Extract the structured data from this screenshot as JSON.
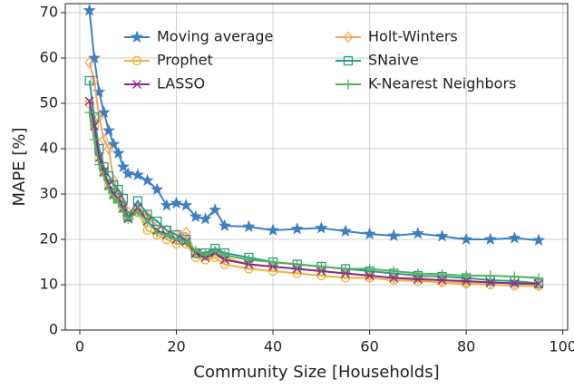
{
  "chart_data": {
    "type": "line",
    "xlabel": "Community Size [Households]",
    "ylabel": "MAPE [%]",
    "x": [
      2,
      3,
      4,
      5,
      6,
      7,
      8,
      9,
      10,
      12,
      14,
      16,
      18,
      20,
      22,
      24,
      26,
      28,
      30,
      35,
      40,
      45,
      50,
      55,
      60,
      65,
      70,
      75,
      80,
      85,
      90,
      95
    ],
    "series": [
      {
        "name": "Moving average",
        "color": "#3f7fc1",
        "marker": "star",
        "values": [
          70.5,
          60,
          52.5,
          48,
          44,
          41,
          39,
          36,
          34.5,
          34.2,
          33,
          31,
          27.5,
          28,
          27.5,
          25,
          24.5,
          26.5,
          23,
          22.8,
          22,
          22.3,
          22.5,
          21.8,
          21.2,
          20.8,
          21.3,
          20.7,
          20,
          20,
          20.3,
          19.8
        ]
      },
      {
        "name": "Holt-Winters",
        "color": "#f5a75e",
        "marker": "diamond",
        "values": [
          59,
          55,
          47,
          42,
          40,
          33,
          30,
          28,
          26,
          27,
          25,
          23,
          22,
          21,
          21.5,
          17,
          16.5,
          17,
          16,
          14.5,
          14,
          13.5,
          13,
          12.5,
          12,
          11.5,
          11.5,
          11,
          10.5,
          10.5,
          10.3,
          10
        ]
      },
      {
        "name": "Prophet",
        "color": "#eeb33a",
        "marker": "circle",
        "values": [
          50,
          45,
          38,
          35,
          32,
          30,
          29,
          27,
          25,
          26,
          22,
          21,
          20,
          19,
          19,
          16,
          15.5,
          16,
          14.5,
          13.5,
          13,
          12.5,
          12,
          11.5,
          11.5,
          11,
          10.8,
          10.5,
          10.2,
          10,
          9.8,
          9.7
        ]
      },
      {
        "name": "SNaive",
        "color": "#2e9a8a",
        "marker": "square",
        "values": [
          55,
          47,
          40,
          36,
          34,
          32,
          31,
          29,
          25,
          28.5,
          25.5,
          24,
          22,
          21,
          20,
          17,
          17,
          18,
          17,
          16,
          15,
          14.5,
          14,
          13.5,
          13,
          12.5,
          12,
          11.8,
          11.5,
          11,
          10.8,
          10.3
        ]
      },
      {
        "name": "LASSO",
        "color": "#8a2a87",
        "marker": "x",
        "values": [
          50.5,
          45,
          38,
          35,
          32,
          30,
          29,
          27,
          24.5,
          27,
          24,
          22,
          21,
          20,
          19.5,
          17,
          16,
          17,
          15.5,
          14.5,
          14,
          13.5,
          13,
          12.5,
          12,
          11.5,
          11.2,
          11,
          10.8,
          10.5,
          10.3,
          10.2
        ]
      },
      {
        "name": "K-Nearest Neighbors",
        "color": "#4fb35a",
        "marker": "plus",
        "values": [
          48,
          42,
          36.5,
          34,
          31,
          29,
          28,
          26,
          24.5,
          26,
          24,
          21.5,
          21,
          20,
          19.5,
          17.5,
          16.5,
          17.5,
          16.5,
          15.5,
          15,
          14.5,
          14,
          13.5,
          13.5,
          13,
          12.5,
          12.3,
          12,
          12,
          11.8,
          11.5
        ]
      }
    ],
    "xlim": [
      -3,
      101
    ],
    "ylim": [
      0,
      72
    ],
    "xticks": [
      0,
      20,
      40,
      60,
      80,
      100
    ],
    "yticks": [
      0,
      10,
      20,
      30,
      40,
      50,
      60,
      70
    ],
    "grid": true,
    "legend": "upper center"
  }
}
